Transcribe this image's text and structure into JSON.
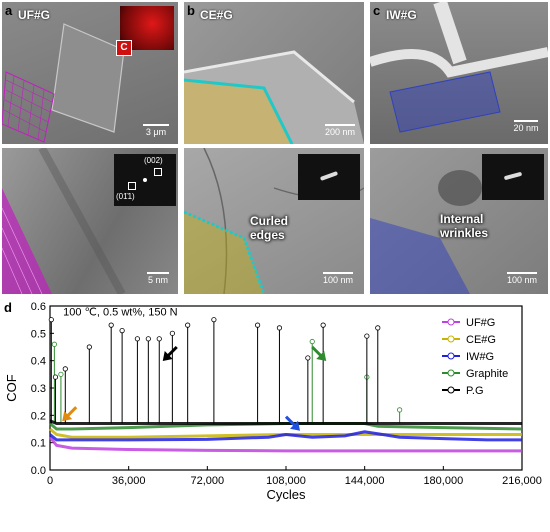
{
  "panels": {
    "a": {
      "letter": "a",
      "title": "UF#G",
      "scale_top": "3 μm",
      "scale_bottom": "5 nm",
      "inset_tag": "C",
      "diff_label_1": "(002)",
      "diff_label_2": "(01̄1)"
    },
    "b": {
      "letter": "b",
      "title": "CE#G",
      "scale_top": "200 nm",
      "scale_bottom": "100 nm",
      "annotation": "Curled\nedges"
    },
    "c": {
      "letter": "c",
      "title": "IW#G",
      "scale_top": "20 nm",
      "scale_bottom": "100 nm",
      "annotation": "Internal\nwrinkles"
    }
  },
  "colors": {
    "UF#G": "#c040e0",
    "CE#G": "#c8b400",
    "IW#G": "#2020e0",
    "Graphite": "#2e8b2e",
    "P.G": "#000000",
    "inset_red": "#d01010",
    "lattice_magenta": "#c020c0",
    "lattice_cyan": "#20c8c8",
    "lattice_blue": "#3040c0"
  },
  "chart_data": {
    "type": "line",
    "panel_letter": "d",
    "condition": "100 ℃, 0.5 wt%, 150 N",
    "xlabel": "Cycles",
    "ylabel": "COF",
    "xlim": [
      0,
      216000
    ],
    "ylim": [
      0,
      0.6
    ],
    "xticks": [
      0,
      36000,
      72000,
      108000,
      144000,
      180000,
      216000
    ],
    "xtick_labels": [
      "0",
      "36,000",
      "72,000",
      "108,000",
      "144,000",
      "180,000",
      "216,000"
    ],
    "yticks": [
      0.0,
      0.1,
      0.2,
      0.3,
      0.4,
      0.5,
      0.6
    ],
    "ytick_labels": [
      "0.0",
      "0.1",
      "0.2",
      "0.3",
      "0.4",
      "0.5",
      "0.6"
    ],
    "legend_position": "right",
    "series": [
      {
        "name": "UF#G",
        "color": "#c040e0",
        "x": [
          0,
          3000,
          10000,
          36000,
          72000,
          108000,
          144000,
          180000,
          216000
        ],
        "y": [
          0.12,
          0.09,
          0.08,
          0.075,
          0.072,
          0.07,
          0.07,
          0.07,
          0.07
        ]
      },
      {
        "name": "CE#G",
        "color": "#c8b400",
        "x": [
          0,
          3000,
          10000,
          36000,
          72000,
          108000,
          144000,
          180000,
          216000
        ],
        "y": [
          0.15,
          0.13,
          0.12,
          0.12,
          0.125,
          0.13,
          0.13,
          0.13,
          0.13
        ]
      },
      {
        "name": "IW#G",
        "color": "#2020e0",
        "x": [
          0,
          3000,
          10000,
          36000,
          72000,
          100000,
          108000,
          120000,
          135000,
          144000,
          160000,
          180000,
          200000,
          216000
        ],
        "y": [
          0.13,
          0.11,
          0.11,
          0.11,
          0.112,
          0.12,
          0.13,
          0.12,
          0.125,
          0.14,
          0.12,
          0.115,
          0.11,
          0.11
        ]
      },
      {
        "name": "Graphite",
        "color": "#2e8b2e",
        "x": [
          0,
          3000,
          10000,
          36000,
          72000,
          108000,
          144000,
          150000,
          180000,
          216000
        ],
        "y": [
          0.17,
          0.15,
          0.15,
          0.155,
          0.165,
          0.17,
          0.17,
          0.16,
          0.155,
          0.15
        ],
        "spikes_x": [
          2000,
          5000,
          120000,
          145000,
          160000
        ],
        "spikes_y": [
          0.46,
          0.35,
          0.47,
          0.34,
          0.22
        ]
      },
      {
        "name": "P.G",
        "color": "#000000",
        "x": [
          0,
          3000,
          10000,
          36000,
          72000,
          108000,
          144000,
          180000,
          216000
        ],
        "y": [
          0.18,
          0.17,
          0.17,
          0.17,
          0.17,
          0.17,
          0.17,
          0.17,
          0.17
        ],
        "spikes_x": [
          600,
          2500,
          7000,
          18000,
          28000,
          33000,
          40000,
          45000,
          50000,
          56000,
          63000,
          75000,
          95000,
          105000,
          118000,
          125000,
          145000,
          150000
        ],
        "spikes_y": [
          0.55,
          0.34,
          0.37,
          0.45,
          0.53,
          0.51,
          0.48,
          0.48,
          0.48,
          0.5,
          0.53,
          0.55,
          0.53,
          0.52,
          0.41,
          0.53,
          0.49,
          0.52
        ]
      }
    ],
    "arrows": [
      {
        "x": 12000,
        "y": 0.23,
        "color": "#e08a10",
        "dir": "down-left"
      },
      {
        "x": 58000,
        "y": 0.45,
        "color": "#000000",
        "dir": "down-left"
      },
      {
        "x": 120000,
        "y": 0.45,
        "color": "#2e8b2e",
        "dir": "down-right"
      },
      {
        "x": 108000,
        "y": 0.195,
        "color": "#2050e0",
        "dir": "down-right"
      }
    ]
  }
}
